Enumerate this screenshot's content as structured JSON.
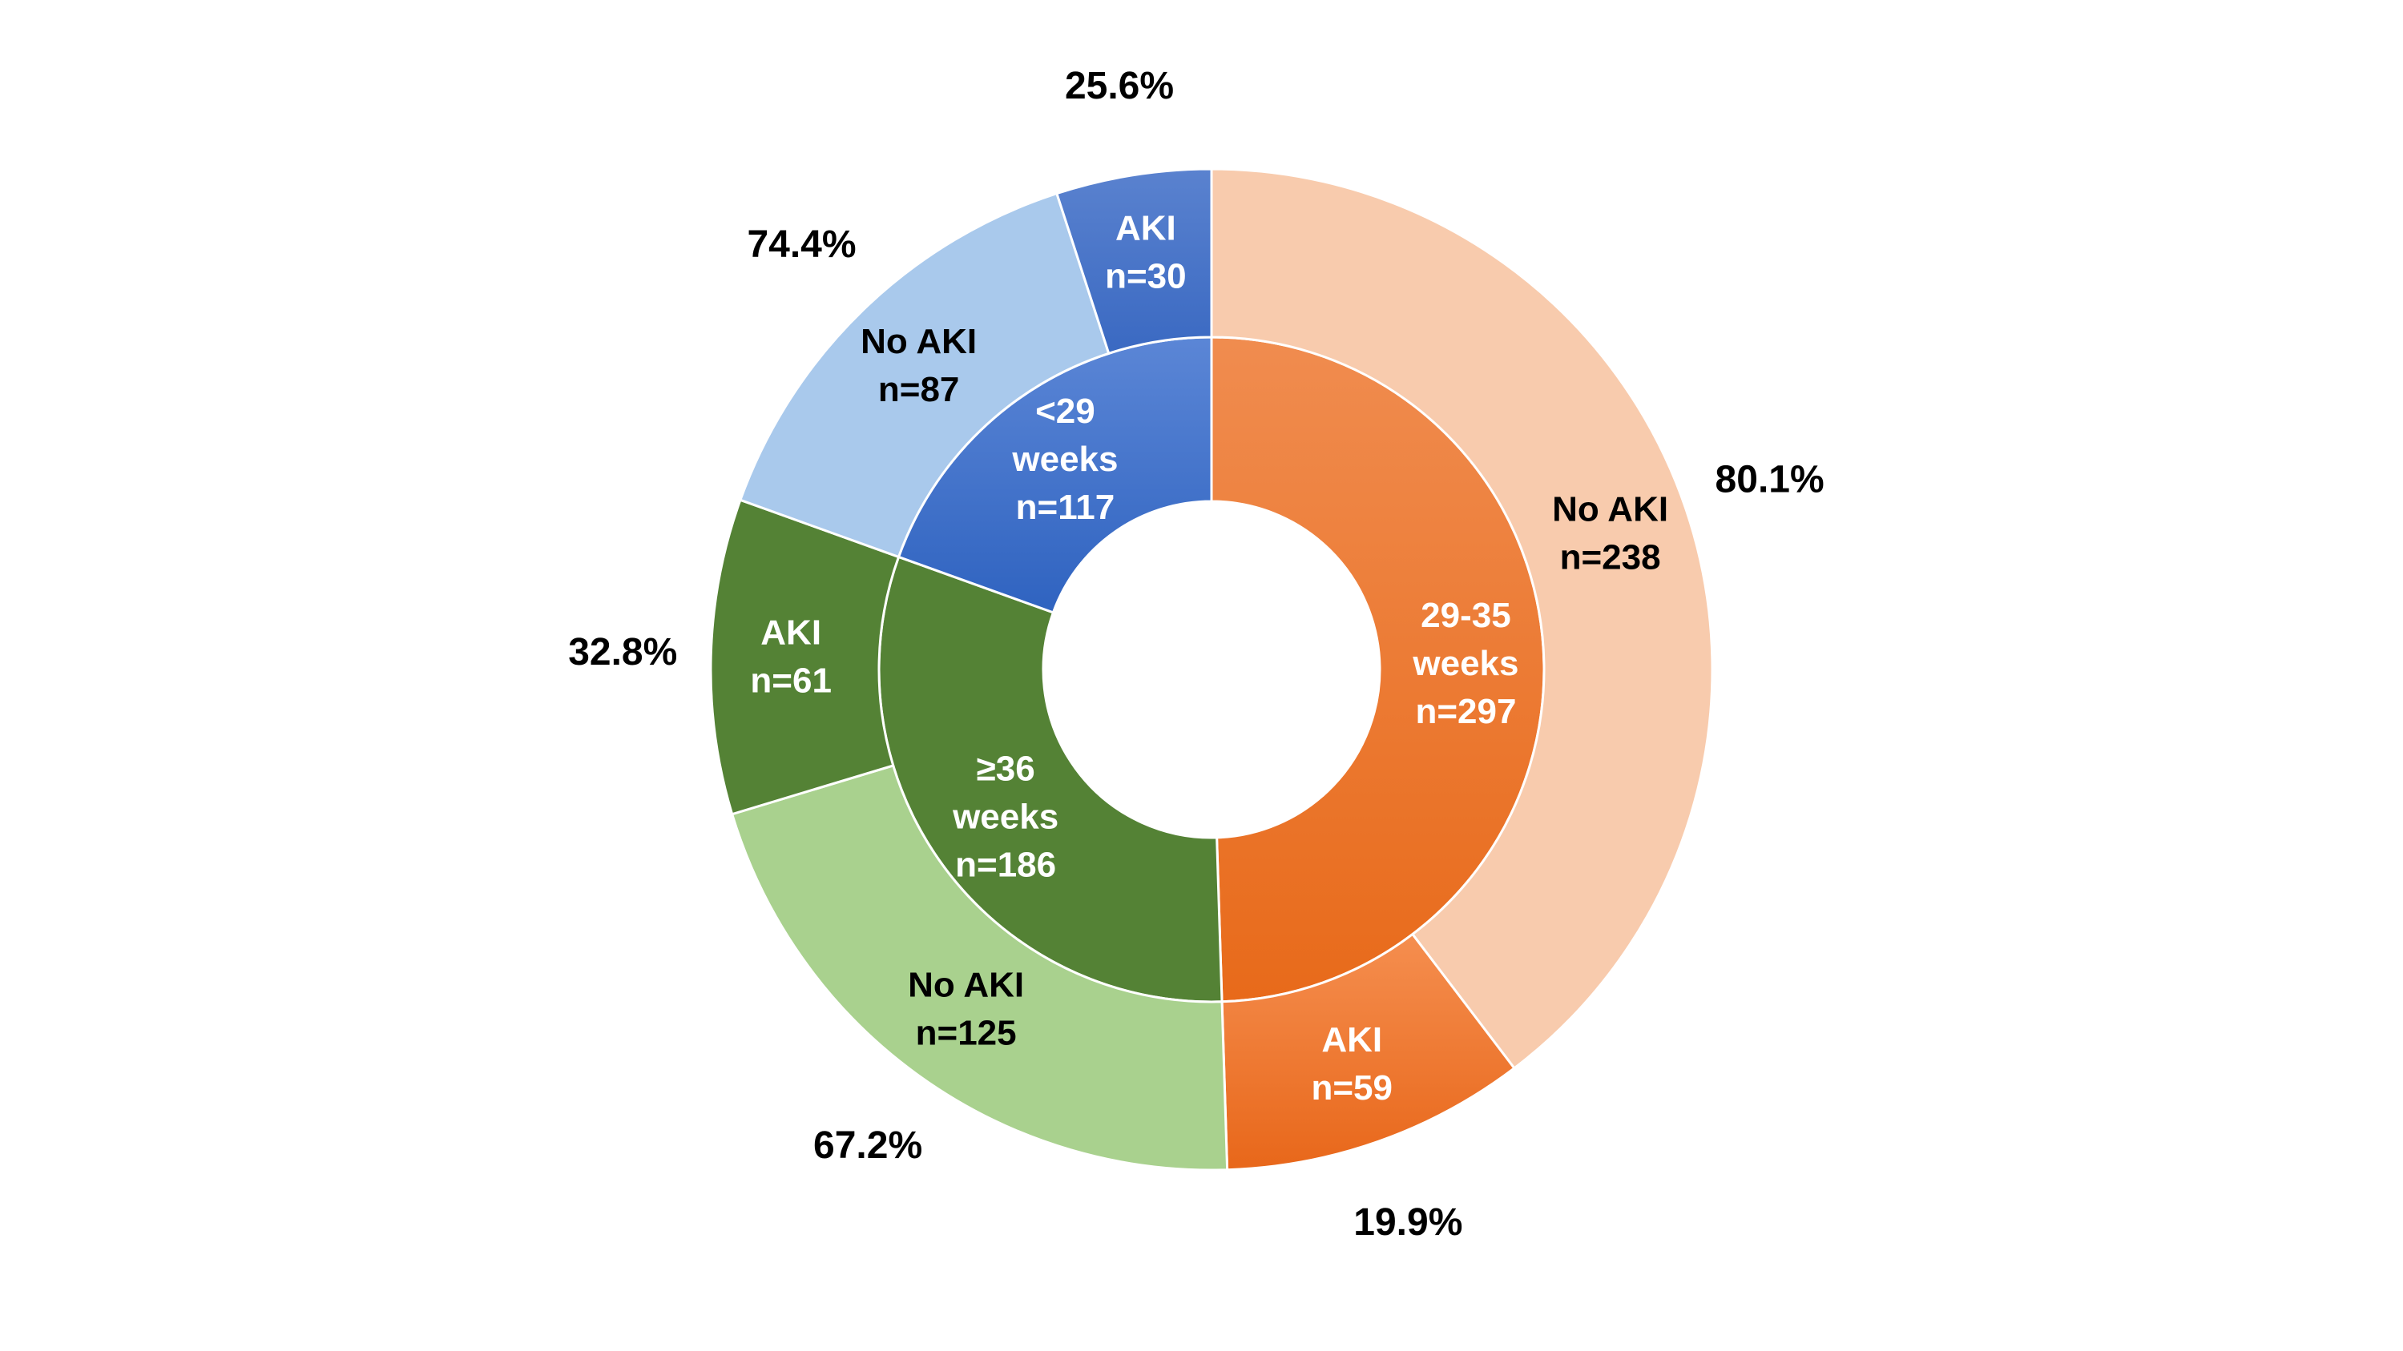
{
  "chart_data": {
    "type": "pie",
    "variant": "sunburst-donut",
    "title": "",
    "total": 600,
    "start": "top",
    "direction": "clockwise",
    "groups": [
      {
        "label": [
          "29-35",
          "weeks",
          "n=297"
        ],
        "value": 297,
        "color": "#ed7d31",
        "children": [
          {
            "label": [
              "No AKI",
              "n=238"
            ],
            "value": 238,
            "percent": "80.1%",
            "color": "#f8cbad"
          },
          {
            "label": [
              "AKI",
              "n=59"
            ],
            "value": 59,
            "percent": "19.9%",
            "color": "#f4874a"
          }
        ]
      },
      {
        "label": [
          "≥36",
          "weeks",
          "n=186"
        ],
        "value": 186,
        "color": "#548235",
        "children": [
          {
            "label": [
              "No AKI",
              "n=125"
            ],
            "value": 125,
            "percent": "67.2%",
            "color": "#a9d18e"
          },
          {
            "label": [
              "AKI",
              "n=61"
            ],
            "value": 61,
            "percent": "32.8%",
            "color": "#548235"
          }
        ]
      },
      {
        "label": [
          "<29",
          "weeks",
          "n=117"
        ],
        "value": 117,
        "color": "#4472c4",
        "children": [
          {
            "label": [
              "No AKI",
              "n=87"
            ],
            "value": 87,
            "percent": "74.4%",
            "color": "#a9c9ec"
          },
          {
            "label": [
              "AKI",
              "n=30"
            ],
            "value": 30,
            "percent": "25.6%",
            "color": "#4a76c9"
          }
        ]
      }
    ]
  }
}
